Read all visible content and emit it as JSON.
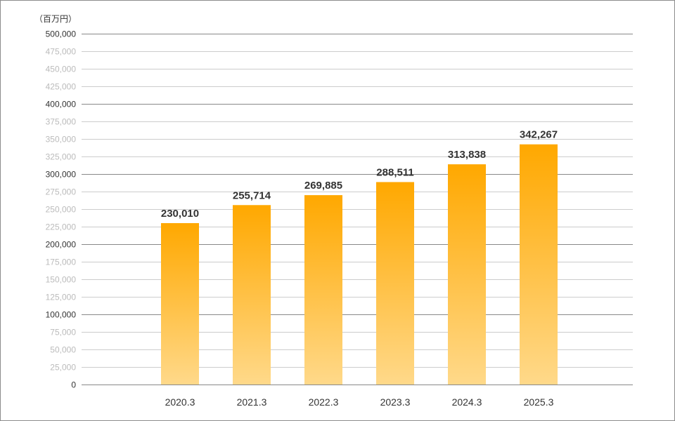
{
  "chart_data": {
    "type": "bar",
    "unit_label": "（百万円）",
    "categories": [
      "2020.3",
      "2021.3",
      "2022.3",
      "2023.3",
      "2024.3",
      "2025.3"
    ],
    "values": [
      230010,
      255714,
      269885,
      288511,
      313838,
      342267
    ],
    "value_labels": [
      "230,010",
      "255,714",
      "269,885",
      "288,511",
      "313,838",
      "342,267"
    ],
    "ylim": [
      0,
      500000
    ],
    "y_ticks": [
      "0",
      "25,000",
      "50,000",
      "75,000",
      "100,000",
      "125,000",
      "150,000",
      "175,000",
      "200,000",
      "225,000",
      "250,000",
      "275,000",
      "300,000",
      "325,000",
      "350,000",
      "375,000",
      "400,000",
      "425,000",
      "450,000",
      "475,000",
      "500,000"
    ],
    "y_tick_values": [
      0,
      25000,
      50000,
      75000,
      100000,
      125000,
      150000,
      175000,
      200000,
      225000,
      250000,
      275000,
      300000,
      325000,
      350000,
      375000,
      400000,
      425000,
      450000,
      475000,
      500000
    ],
    "major_ticks": [
      0,
      100000,
      200000,
      300000,
      400000,
      500000
    ],
    "grid": true,
    "legend": "none",
    "colors": {
      "bar_top": "#ffa800",
      "bar_bottom": "#ffd98a",
      "major_grid": "#888888",
      "minor_grid": "#cccccc",
      "major_tick_text": "#333333",
      "minor_tick_text": "#bbbbbb"
    }
  }
}
